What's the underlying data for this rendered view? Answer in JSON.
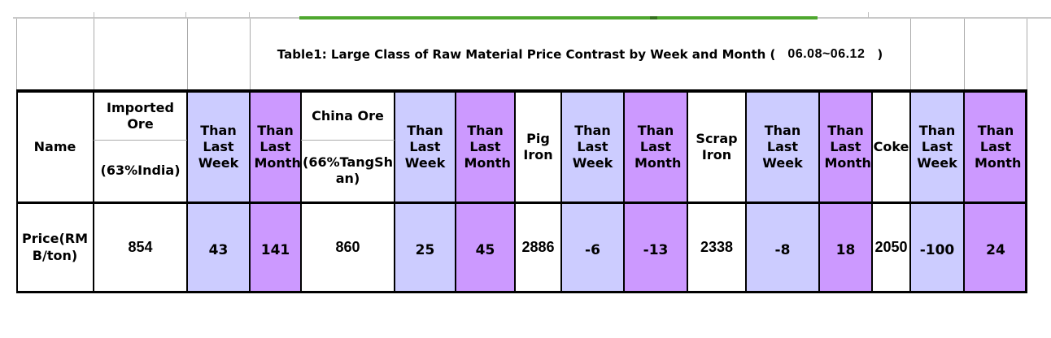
{
  "colors": {
    "week_bg": "#CCCCFF",
    "month_bg": "#CC99FF",
    "accent_green": "#4EA72E",
    "grid_gray": "#ABABAB"
  },
  "title": {
    "text": "Table1: Large Class of Raw Material Price Contrast by Week and Month (",
    "period": "06.08~06.12",
    "close": ")"
  },
  "header": {
    "name": "Name",
    "than_last_week": "Than Last Week",
    "than_last_month": "Than Last Month"
  },
  "row_label": "Price(RMB/ton)",
  "materials": [
    {
      "name": "Imported Ore",
      "spec": "(63%India)",
      "price": "854",
      "vs_week": "43",
      "vs_month": "141"
    },
    {
      "name": "China Ore",
      "spec": "(66%TangShan)",
      "price": "860",
      "vs_week": "25",
      "vs_month": "45"
    },
    {
      "name": "Pig Iron",
      "price": "2886",
      "vs_week": "-6",
      "vs_month": "-13"
    },
    {
      "name": "Scrap Iron",
      "price": "2338",
      "vs_week": "-8",
      "vs_month": "18"
    },
    {
      "name": "Coke",
      "price": "2050",
      "vs_week": "-100",
      "vs_month": "24"
    }
  ]
}
